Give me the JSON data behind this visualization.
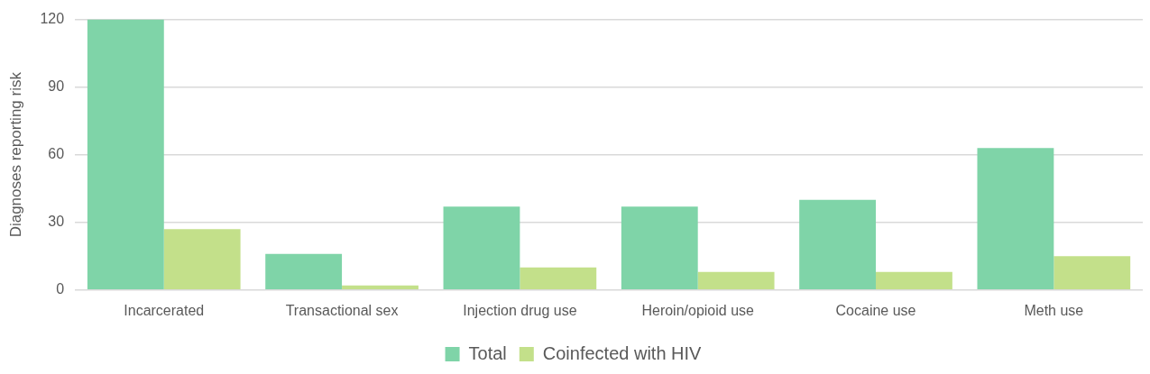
{
  "chart_data": {
    "type": "bar",
    "ylabel": "Diagnoses reporting risk",
    "categories": [
      "Incarcerated",
      "Transactional sex",
      "Injection drug use",
      "Heroin/opioid use",
      "Cocaine use",
      "Meth use"
    ],
    "series": [
      {
        "name": "Total",
        "color": "#7fd4a8",
        "values": [
          120,
          16,
          37,
          37,
          40,
          63
        ]
      },
      {
        "name": "Coinfected with HIV",
        "color": "#c3e08a",
        "values": [
          27,
          2,
          10,
          8,
          8,
          15
        ]
      }
    ],
    "ylim": [
      0,
      120
    ],
    "yticks": [
      0,
      30,
      60,
      90,
      120
    ],
    "grid": "y",
    "legend": "bottom"
  }
}
